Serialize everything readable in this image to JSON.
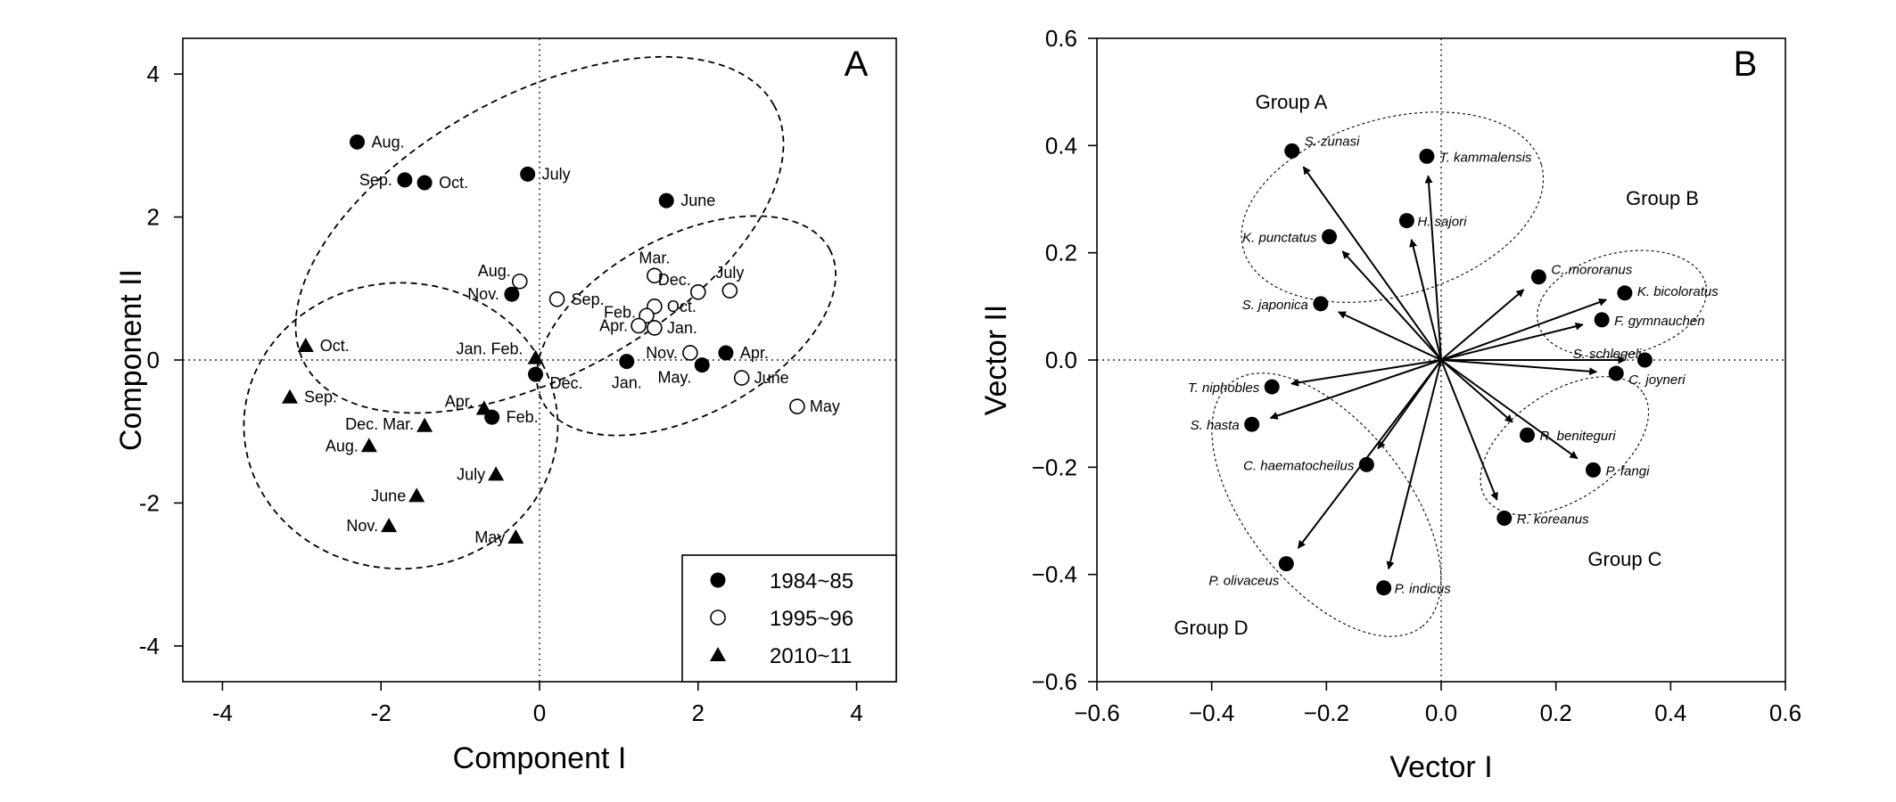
{
  "chart_data": [
    {
      "type": "scatter",
      "panel_label": "A",
      "xlabel": "Component I",
      "ylabel": "Component II",
      "xlim": [
        -4.5,
        4.5
      ],
      "ylim": [
        -4.5,
        4.5
      ],
      "xticks": [
        -4,
        -2,
        0,
        2,
        4
      ],
      "yticks": [
        -4,
        -2,
        0,
        2,
        4
      ],
      "zero_lines": true,
      "legend": {
        "position": "bottom-right",
        "entries": [
          "1984~85",
          "1995~96",
          "2010~11"
        ]
      },
      "series": [
        {
          "name": "1984~85",
          "marker": "filled-circle",
          "points": [
            {
              "x": -2.3,
              "y": 3.05,
              "label": "Aug."
            },
            {
              "x": -1.7,
              "y": 2.52,
              "label": "Sep."
            },
            {
              "x": -1.45,
              "y": 2.48,
              "label": "Oct."
            },
            {
              "x": -0.15,
              "y": 2.6,
              "label": "July"
            },
            {
              "x": 1.6,
              "y": 2.23,
              "label": "June"
            },
            {
              "x": -0.35,
              "y": 0.92,
              "label": "Nov."
            },
            {
              "x": -0.05,
              "y": -0.2,
              "label": "Dec."
            },
            {
              "x": 1.1,
              "y": -0.02,
              "label": "Jan."
            },
            {
              "x": 2.35,
              "y": 0.1,
              "label": "Apr."
            },
            {
              "x": 2.05,
              "y": -0.07,
              "label": "May."
            },
            {
              "x": -0.6,
              "y": -0.8,
              "label": "Feb."
            }
          ]
        },
        {
          "name": "1995~96",
          "marker": "open-circle",
          "points": [
            {
              "x": -0.25,
              "y": 1.1,
              "label": "Aug."
            },
            {
              "x": 0.22,
              "y": 0.85,
              "label": "Sep."
            },
            {
              "x": 1.45,
              "y": 1.18,
              "label": "Mar."
            },
            {
              "x": 2.0,
              "y": 0.95,
              "label": "Dec."
            },
            {
              "x": 2.4,
              "y": 0.97,
              "label": "July"
            },
            {
              "x": 1.45,
              "y": 0.75,
              "label": "Oct."
            },
            {
              "x": 1.35,
              "y": 0.62,
              "label": "Feb."
            },
            {
              "x": 1.25,
              "y": 0.48,
              "label": "Apr."
            },
            {
              "x": 1.45,
              "y": 0.45,
              "label": "Jan."
            },
            {
              "x": 1.9,
              "y": 0.1,
              "label": "Nov."
            },
            {
              "x": 2.55,
              "y": -0.25,
              "label": "June"
            },
            {
              "x": 3.25,
              "y": -0.65,
              "label": "May"
            }
          ]
        },
        {
          "name": "2010~11",
          "marker": "filled-triangle",
          "points": [
            {
              "x": -2.95,
              "y": 0.2,
              "label": "Oct."
            },
            {
              "x": -3.15,
              "y": -0.52,
              "label": "Sep."
            },
            {
              "x": -0.05,
              "y": 0.03,
              "label": "Jan. Feb."
            },
            {
              "x": -0.7,
              "y": -0.68,
              "label": "Apr."
            },
            {
              "x": -1.45,
              "y": -0.92,
              "label": "Dec. Mar."
            },
            {
              "x": -2.15,
              "y": -1.2,
              "label": "Aug."
            },
            {
              "x": -0.55,
              "y": -1.6,
              "label": "July"
            },
            {
              "x": -1.55,
              "y": -1.9,
              "label": "June"
            },
            {
              "x": -1.9,
              "y": -2.32,
              "label": "Nov."
            },
            {
              "x": -0.3,
              "y": -2.48,
              "label": "May"
            }
          ]
        }
      ]
    },
    {
      "type": "scatter",
      "panel_label": "B",
      "xlabel": "Vector I",
      "ylabel": "Vector II",
      "xlim": [
        -0.6,
        0.6
      ],
      "ylim": [
        -0.6,
        0.6
      ],
      "xticks": [
        -0.6,
        -0.4,
        -0.2,
        0.0,
        0.2,
        0.4,
        0.6
      ],
      "yticks": [
        -0.6,
        -0.4,
        -0.2,
        0.0,
        0.2,
        0.4,
        0.6
      ],
      "tick_format": "0.0",
      "zero_lines": true,
      "vectors_from_origin": true,
      "groups": [
        {
          "label": "Group A"
        },
        {
          "label": "Group B"
        },
        {
          "label": "Group C"
        },
        {
          "label": "Group D"
        }
      ],
      "points": [
        {
          "x": -0.26,
          "y": 0.39,
          "label": "S. zunasi"
        },
        {
          "x": -0.025,
          "y": 0.38,
          "label": "T. kammalensis"
        },
        {
          "x": -0.06,
          "y": 0.26,
          "label": "H. sajori"
        },
        {
          "x": -0.195,
          "y": 0.23,
          "label": "K. punctatus"
        },
        {
          "x": -0.21,
          "y": 0.105,
          "label": "S. japonica"
        },
        {
          "x": 0.17,
          "y": 0.155,
          "label": "C. mororanus"
        },
        {
          "x": 0.32,
          "y": 0.125,
          "label": "K. bicoloratus"
        },
        {
          "x": 0.28,
          "y": 0.075,
          "label": "F. gymnauchen"
        },
        {
          "x": 0.355,
          "y": 0.0,
          "label": "S. schlegeli"
        },
        {
          "x": 0.305,
          "y": -0.025,
          "label": "C. joyneri"
        },
        {
          "x": -0.295,
          "y": -0.05,
          "label": "T. niphobles"
        },
        {
          "x": -0.33,
          "y": -0.12,
          "label": "S. hasta"
        },
        {
          "x": -0.13,
          "y": -0.195,
          "label": "C. haematocheilus"
        },
        {
          "x": 0.15,
          "y": -0.14,
          "label": "R. beniteguri"
        },
        {
          "x": 0.265,
          "y": -0.205,
          "label": "P. fangi"
        },
        {
          "x": 0.11,
          "y": -0.295,
          "label": "R. koreanus"
        },
        {
          "x": -0.27,
          "y": -0.38,
          "label": "P. olivaceus"
        },
        {
          "x": -0.1,
          "y": -0.425,
          "label": "P. indicus"
        }
      ]
    }
  ]
}
